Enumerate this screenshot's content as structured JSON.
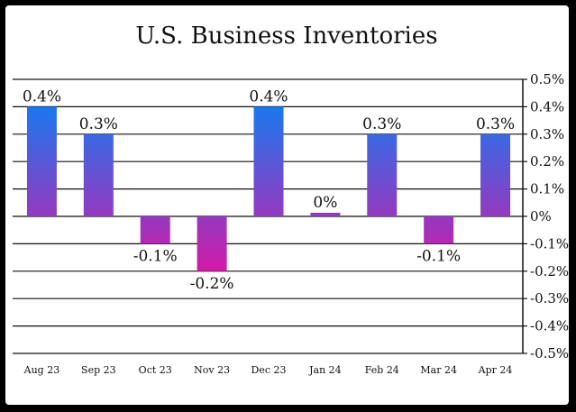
{
  "chart_data": {
    "type": "bar",
    "title": "U.S. Business Inventories",
    "categories": [
      "Aug 23",
      "Sep 23",
      "Oct 23",
      "Nov 23",
      "Dec 23",
      "Jan 24",
      "Feb 24",
      "Mar 24",
      "Apr 24"
    ],
    "values": [
      0.4,
      0.3,
      -0.1,
      -0.2,
      0.4,
      0.0,
      0.3,
      -0.1,
      0.3
    ],
    "data_labels": [
      "0.4%",
      "0.3%",
      "-0.1%",
      "-0.2%",
      "0.4%",
      "0%",
      "0.3%",
      "-0.1%",
      "0.3%"
    ],
    "ylim": [
      -0.5,
      0.5
    ],
    "yticks": [
      0.5,
      0.4,
      0.3,
      0.2,
      0.1,
      0.0,
      -0.1,
      -0.2,
      -0.3,
      -0.4,
      -0.5
    ],
    "ytick_labels": [
      "0.5%",
      "0.4%",
      "0.3%",
      "0.2%",
      "0.1%",
      "0%",
      "-0.1%",
      "-0.2%",
      "-0.3%",
      "-0.4%",
      "-0.5%"
    ],
    "y_axis_side": "right",
    "grid": true,
    "colors": {
      "top": "#1a78f0",
      "bottom": "#d21aa8",
      "grid": "#111111"
    }
  }
}
